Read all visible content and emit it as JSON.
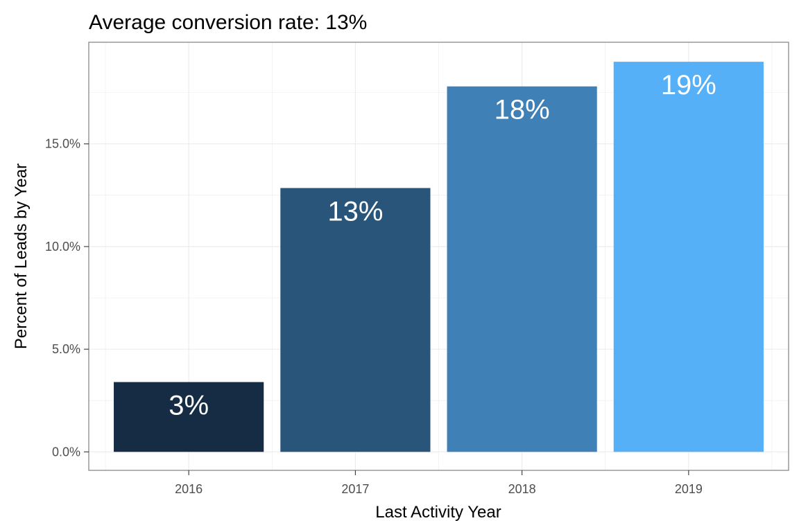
{
  "chart_data": {
    "type": "bar",
    "title": "Average conversion rate: 13%",
    "xlabel": "Last Activity Year",
    "ylabel": "Percent of Leads by Year",
    "categories": [
      "2016",
      "2017",
      "2018",
      "2019"
    ],
    "values": [
      3.4,
      12.85,
      17.8,
      19.0
    ],
    "data_labels": [
      "3%",
      "13%",
      "18%",
      "19%"
    ],
    "bar_colors": [
      "#162c44",
      "#29557a",
      "#3f80b6",
      "#56b0f7"
    ],
    "ylim": [
      -0.9,
      19.95
    ],
    "yticks": [
      0,
      5,
      10,
      15
    ],
    "ytick_labels": [
      "0.0%",
      "5.0%",
      "10.0%",
      "15.0%"
    ],
    "grid": true,
    "legend": "none"
  }
}
